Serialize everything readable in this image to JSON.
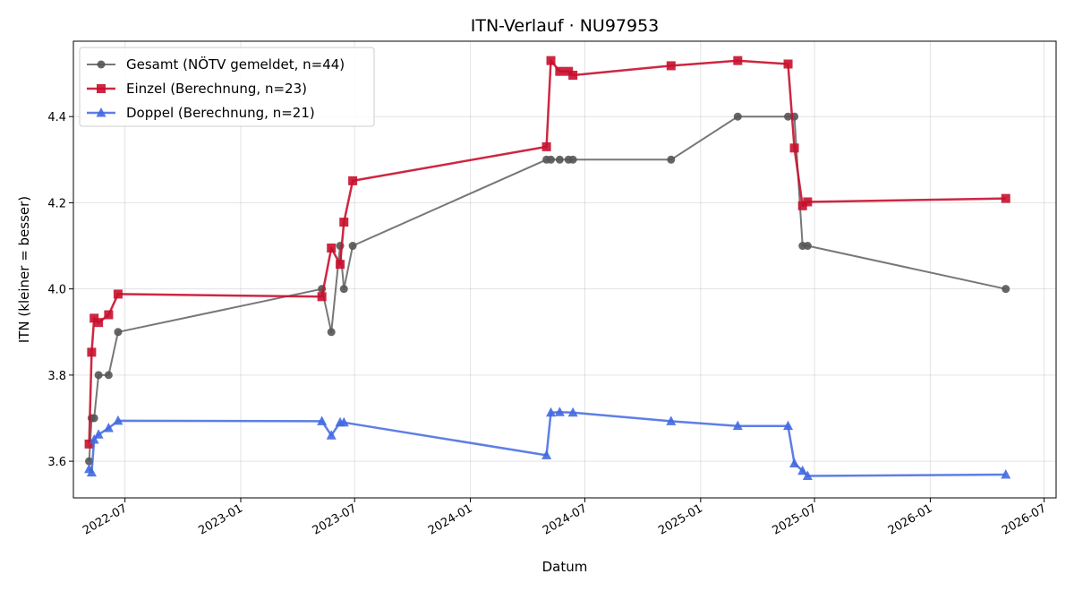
{
  "chart_data": {
    "type": "line",
    "title": "ITN-Verlauf · NU97953",
    "xlabel": "Datum",
    "ylabel": "ITN  (kleiner = besser)",
    "xlim": [
      "2022-04-10",
      "2026-07-20"
    ],
    "ylim": [
      3.515,
      4.575
    ],
    "x_ticks": [
      "2022-07",
      "2023-01",
      "2023-07",
      "2024-01",
      "2024-07",
      "2025-01",
      "2025-07",
      "2026-01",
      "2026-07"
    ],
    "y_ticks": [
      3.6,
      3.8,
      4.0,
      4.2,
      4.4
    ],
    "y_tick_labels": [
      "3.6",
      "3.8",
      "4.0",
      "4.2",
      "4.4"
    ],
    "grid": true,
    "legend_position": "top-left",
    "series": [
      {
        "name": "Gesamt (NÖTV gemeldet, n=44)",
        "color": "#555555",
        "marker": "circle",
        "points": [
          [
            "2022-05-05",
            3.6
          ],
          [
            "2022-05-09",
            3.7
          ],
          [
            "2022-05-13",
            3.7
          ],
          [
            "2022-05-20",
            3.8
          ],
          [
            "2022-06-05",
            3.8
          ],
          [
            "2022-06-20",
            3.9
          ],
          [
            "2023-05-10",
            4.0
          ],
          [
            "2023-05-25",
            3.9
          ],
          [
            "2023-06-08",
            4.1
          ],
          [
            "2023-06-14",
            4.0
          ],
          [
            "2023-06-28",
            4.1
          ],
          [
            "2024-05-01",
            4.3
          ],
          [
            "2024-05-08",
            4.3
          ],
          [
            "2024-05-22",
            4.3
          ],
          [
            "2024-06-05",
            4.3
          ],
          [
            "2024-06-12",
            4.3
          ],
          [
            "2024-11-15",
            4.3
          ],
          [
            "2025-03-01",
            4.4
          ],
          [
            "2025-05-20",
            4.4
          ],
          [
            "2025-05-30",
            4.4
          ],
          [
            "2025-06-12",
            4.1
          ],
          [
            "2025-06-20",
            4.1
          ],
          [
            "2026-05-01",
            4.0
          ]
        ]
      },
      {
        "name": "Einzel (Berechnung, n=23)",
        "color": "#c8102e",
        "marker": "square",
        "points": [
          [
            "2022-05-05",
            3.64
          ],
          [
            "2022-05-09",
            3.853
          ],
          [
            "2022-05-13",
            3.932
          ],
          [
            "2022-05-20",
            3.922
          ],
          [
            "2022-06-05",
            3.94
          ],
          [
            "2022-06-20",
            3.988
          ],
          [
            "2023-05-10",
            3.982
          ],
          [
            "2023-05-25",
            4.095
          ],
          [
            "2023-06-08",
            4.057
          ],
          [
            "2023-06-14",
            4.155
          ],
          [
            "2023-06-28",
            4.251
          ],
          [
            "2024-05-01",
            4.33
          ],
          [
            "2024-05-08",
            4.53
          ],
          [
            "2024-05-22",
            4.505
          ],
          [
            "2024-06-05",
            4.505
          ],
          [
            "2024-06-12",
            4.496
          ],
          [
            "2024-11-15",
            4.518
          ],
          [
            "2025-03-01",
            4.53
          ],
          [
            "2025-05-20",
            4.522
          ],
          [
            "2025-05-30",
            4.327
          ],
          [
            "2025-06-12",
            4.193
          ],
          [
            "2025-06-20",
            4.202
          ],
          [
            "2026-05-01",
            4.21
          ]
        ]
      },
      {
        "name": "Doppel (Berechnung, n=21)",
        "color": "#4169e1",
        "marker": "triangle",
        "points": [
          [
            "2022-05-05",
            3.582
          ],
          [
            "2022-05-09",
            3.574
          ],
          [
            "2022-05-13",
            3.65
          ],
          [
            "2022-05-20",
            3.662
          ],
          [
            "2022-06-05",
            3.677
          ],
          [
            "2022-06-20",
            3.694
          ],
          [
            "2023-05-10",
            3.693
          ],
          [
            "2023-05-25",
            3.66
          ],
          [
            "2023-06-08",
            3.69
          ],
          [
            "2023-06-14",
            3.69
          ],
          [
            "2024-05-01",
            3.614
          ],
          [
            "2024-05-08",
            3.713
          ],
          [
            "2024-05-22",
            3.714
          ],
          [
            "2024-06-12",
            3.713
          ],
          [
            "2024-11-15",
            3.693
          ],
          [
            "2025-03-01",
            3.682
          ],
          [
            "2025-05-20",
            3.682
          ],
          [
            "2025-05-30",
            3.595
          ],
          [
            "2025-06-12",
            3.578
          ],
          [
            "2025-06-20",
            3.566
          ],
          [
            "2026-05-01",
            3.569
          ]
        ]
      }
    ]
  }
}
